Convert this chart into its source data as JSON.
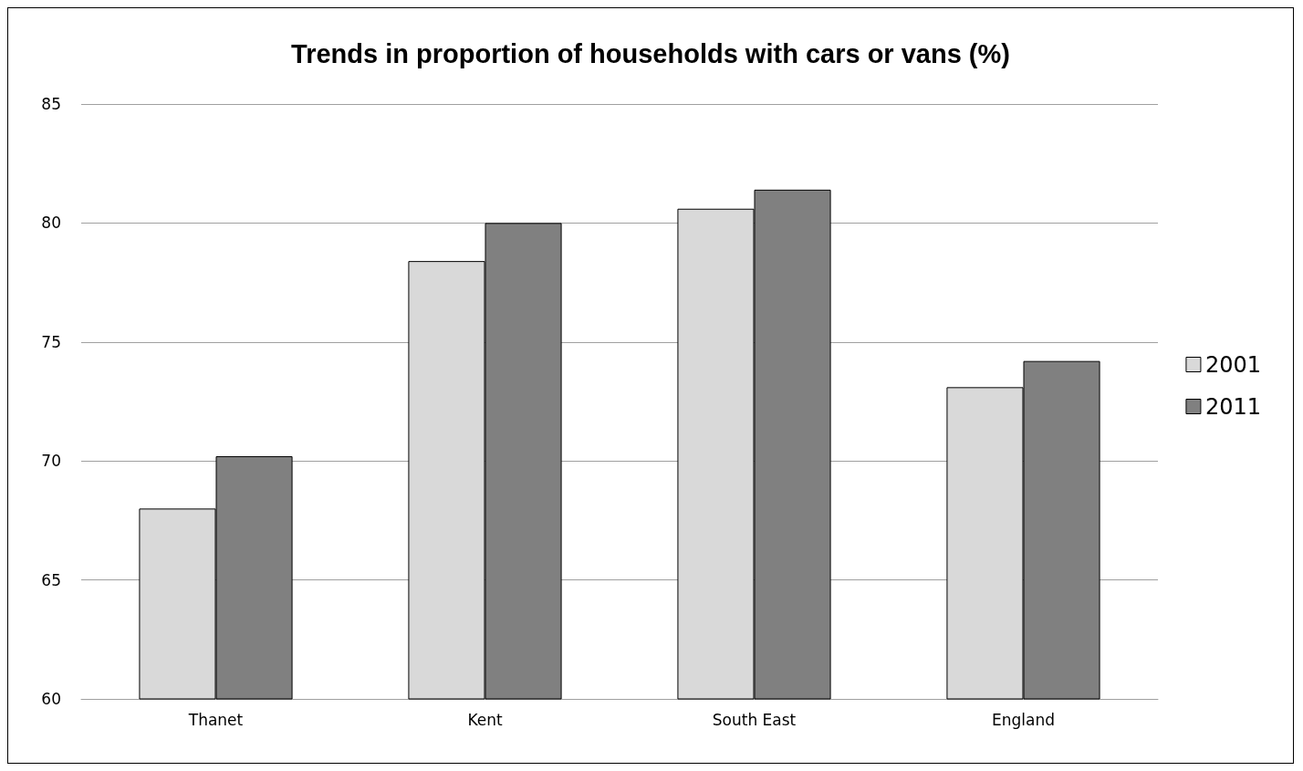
{
  "chart_data": {
    "type": "bar",
    "title": "Trends in proportion of households with cars or vans (%)",
    "categories": [
      "Thanet",
      "Kent",
      "South East",
      "England"
    ],
    "series": [
      {
        "name": "2001",
        "color": "#d9d9d9",
        "values": [
          68.0,
          78.4,
          80.6,
          73.1
        ]
      },
      {
        "name": "2011",
        "color": "#808080",
        "values": [
          70.2,
          80.0,
          81.4,
          74.2
        ]
      }
    ],
    "ylim": [
      60,
      85
    ],
    "yticks": [
      60,
      65,
      70,
      75,
      80,
      85
    ],
    "grid": "y",
    "legend": "right"
  }
}
